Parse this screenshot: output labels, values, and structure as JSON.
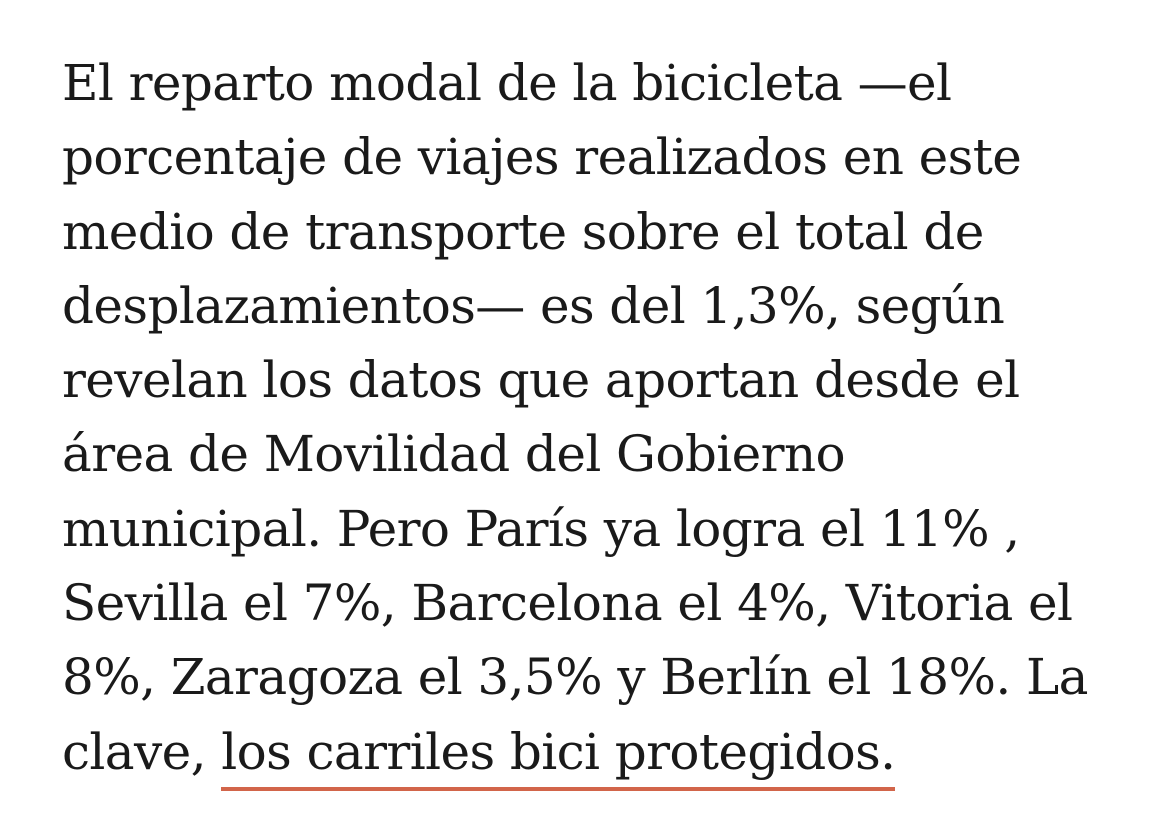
{
  "article": {
    "lines": [
      "El reparto modal de la bicicleta —el",
      "porcentaje de viajes realizados en este",
      "medio de transporte sobre el total de",
      "desplazamientos— es del 1,3%, según",
      "revelan los datos que aportan desde el",
      "área de Movilidad del Gobierno",
      "municipal. Pero París ya logra el 11% ,",
      "Sevilla el 7%, Barcelona el 4%, Vitoria el",
      "8%, Zaragoza el 3,5% y Berlín el 18%. La"
    ],
    "last_line_prefix": "clave, ",
    "link_text": "los carriles bici protegidos.",
    "link_underline_color": "#d2654a"
  }
}
